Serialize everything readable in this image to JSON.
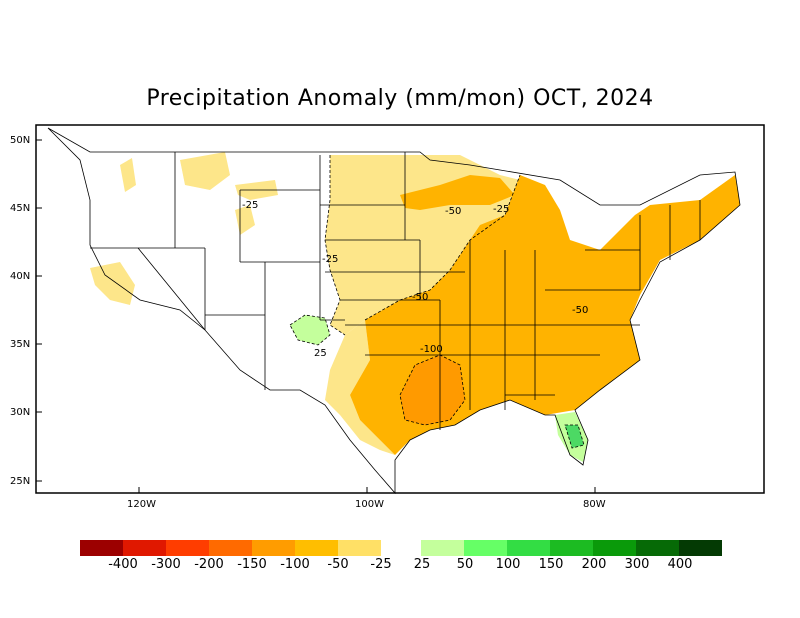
{
  "title": "Precipitation Anomaly (mm/mon) OCT, 2024",
  "lat_labels": [
    "50N",
    "45N",
    "40N",
    "35N",
    "30N",
    "25N"
  ],
  "lon_labels": [
    "120W",
    "100W",
    "80W"
  ],
  "contour_labels": [
    "-25",
    "-25",
    "-50",
    "-25",
    "-50",
    "-100",
    "-50",
    "25"
  ],
  "legend": {
    "ticks": [
      "-400",
      "-300",
      "-200",
      "-150",
      "-100",
      "-50",
      "-25",
      "25",
      "50",
      "100",
      "150",
      "200",
      "300",
      "400"
    ],
    "colors_dry": [
      "#9c0000",
      "#e01800",
      "#ff3d00",
      "#ff6a00",
      "#ff9c00",
      "#ffbe00",
      "#ffe066"
    ],
    "colors_wet": [
      "#c4ff9c",
      "#66ff66",
      "#33dd44",
      "#1cbb22",
      "#0a9a0a",
      "#066a06",
      "#043a04"
    ]
  },
  "colors": {
    "light_dry": "#fde68a",
    "moderate_dry": "#ffb300",
    "strong_dry": "#ff9a00",
    "light_wet": "#c4ff9c",
    "moderate_wet": "#4cd964"
  }
}
